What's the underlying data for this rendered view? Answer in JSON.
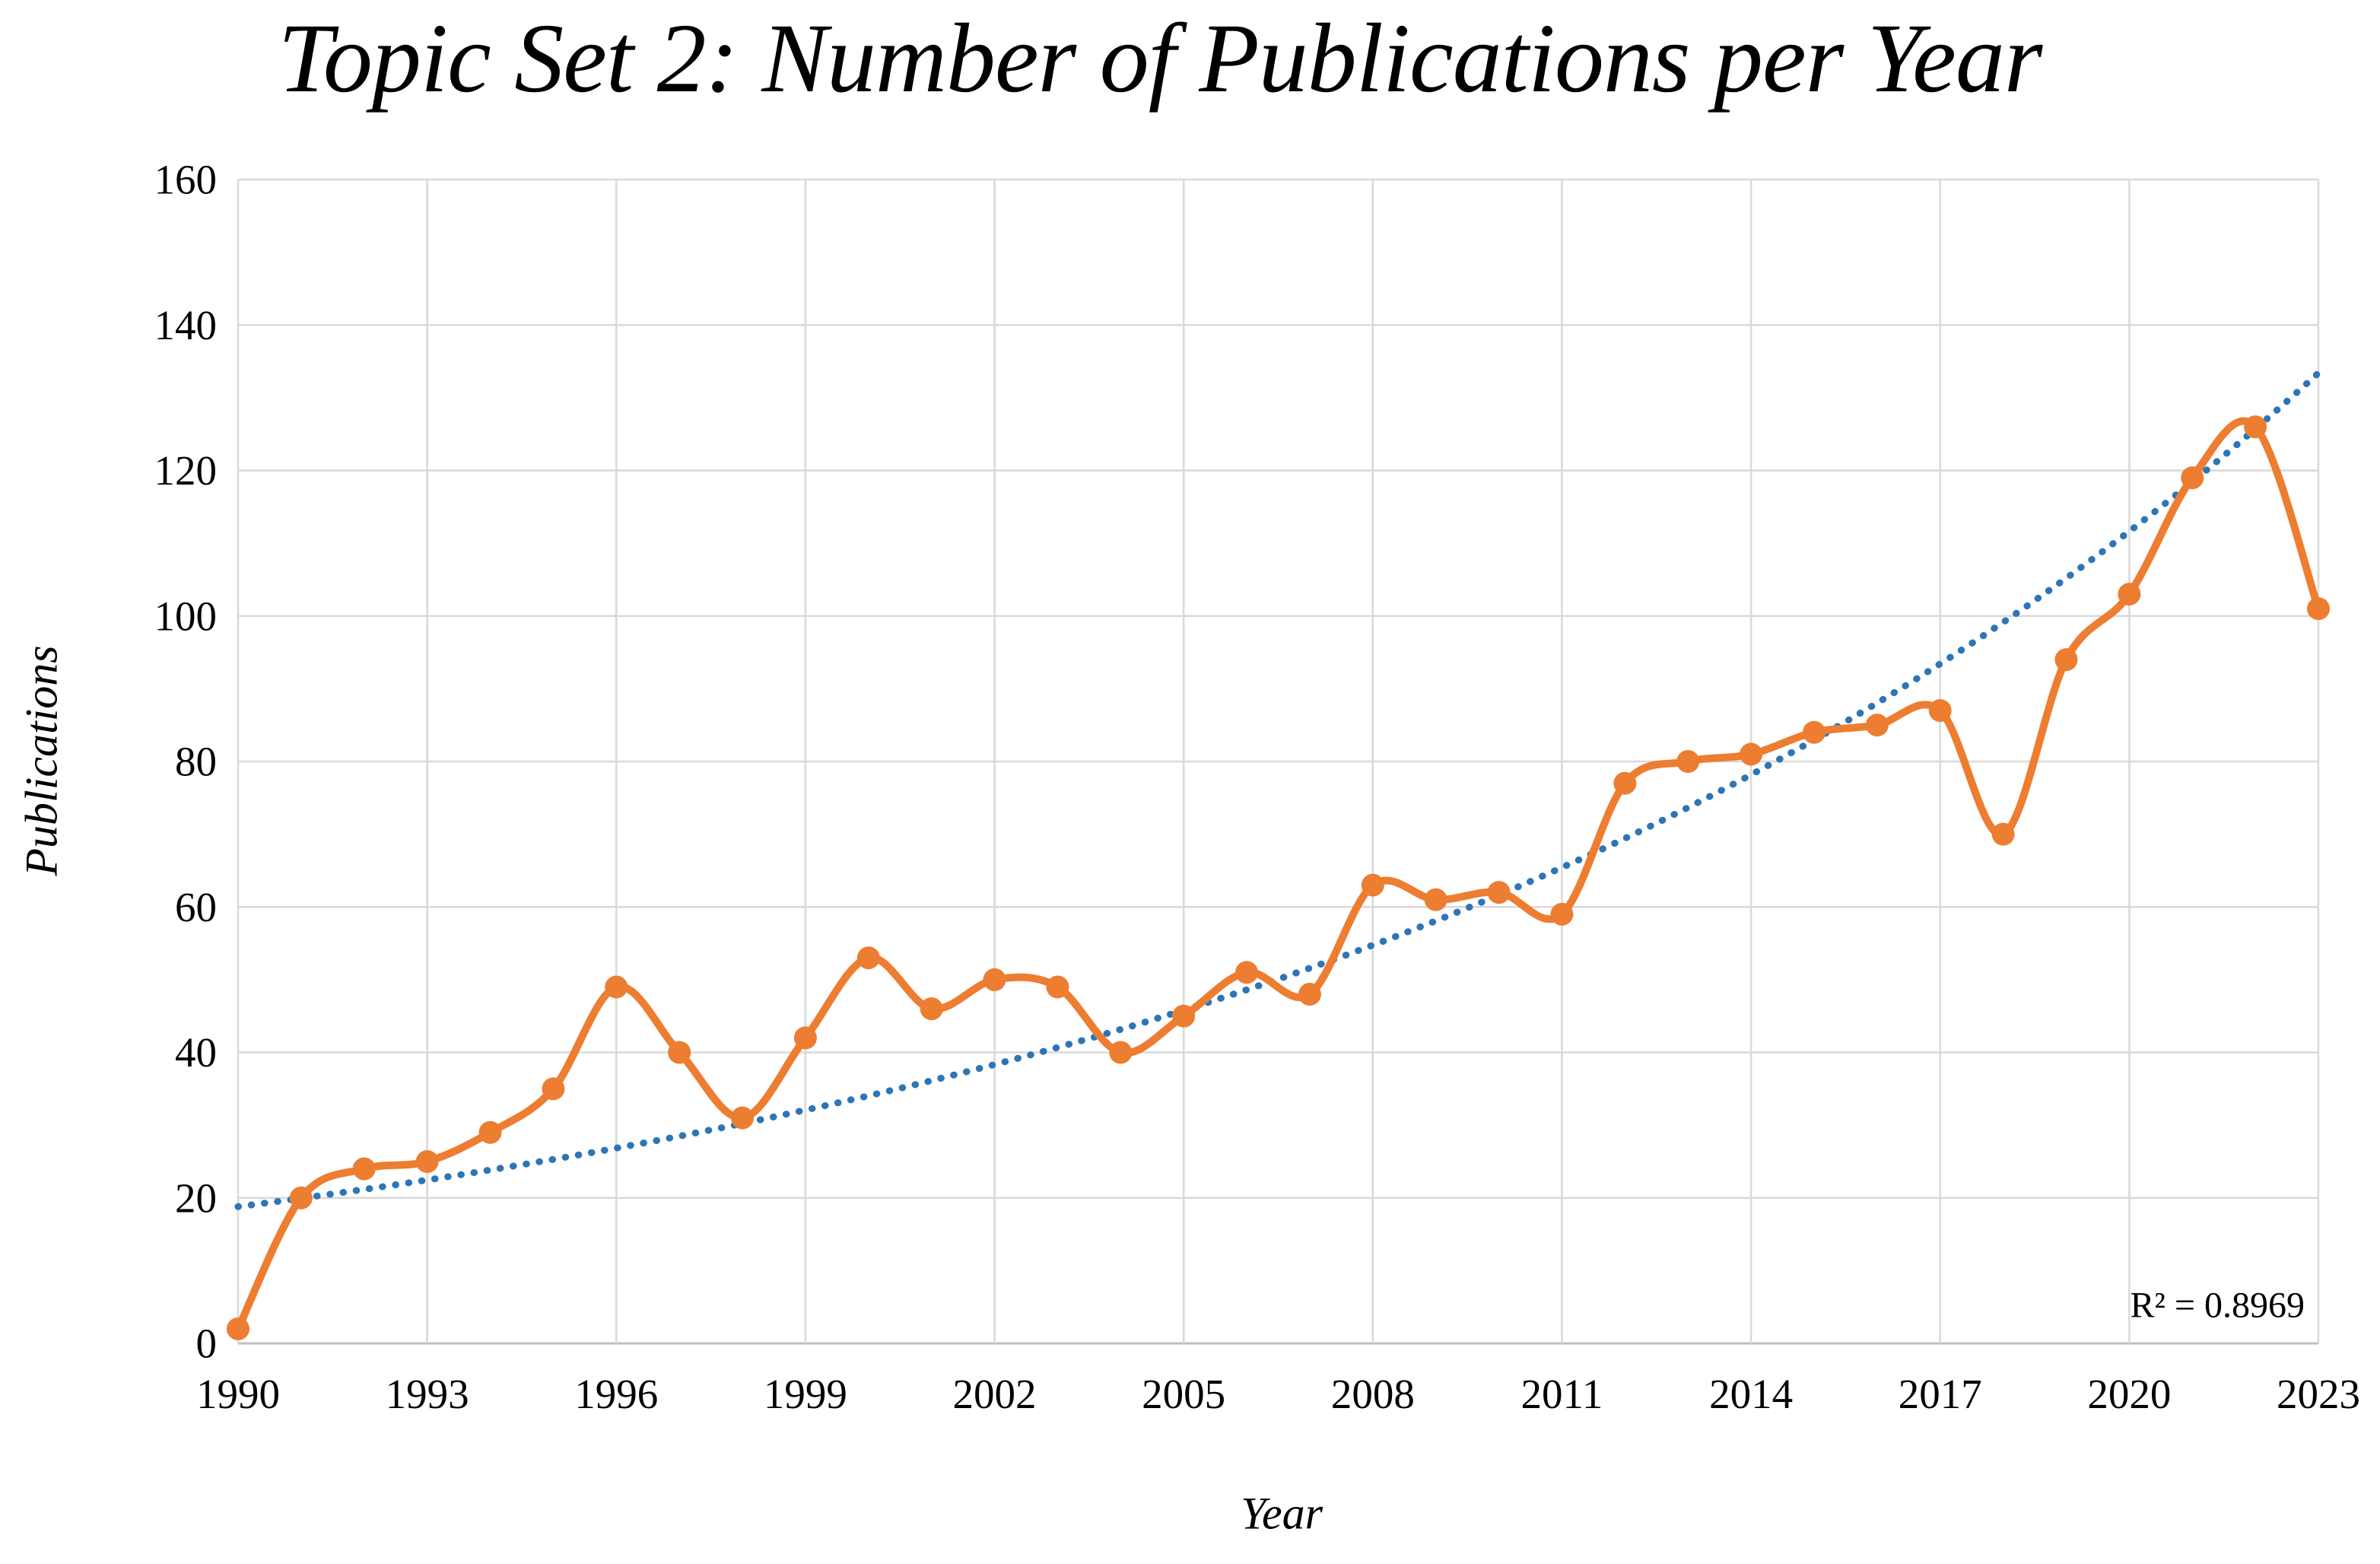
{
  "chart_data": {
    "type": "line",
    "title": "Topic Set 2: Number of Publications per Year",
    "xlabel": "Year",
    "ylabel": "Publications",
    "categories": [
      1990,
      1991,
      1992,
      1993,
      1994,
      1995,
      1996,
      1997,
      1998,
      1999,
      2000,
      2001,
      2002,
      2003,
      2004,
      2005,
      2006,
      2007,
      2008,
      2009,
      2010,
      2011,
      2012,
      2013,
      2014,
      2015,
      2016,
      2017,
      2018,
      2019,
      2020,
      2021,
      2022,
      2023
    ],
    "series": [
      {
        "name": "Publications",
        "color": "#ED7D31",
        "marker": "circle",
        "smooth": true,
        "values": [
          2,
          20,
          24,
          25,
          29,
          35,
          49,
          40,
          31,
          42,
          53,
          46,
          50,
          49,
          40,
          45,
          51,
          48,
          63,
          61,
          62,
          59,
          77,
          80,
          81,
          84,
          85,
          87,
          70,
          94,
          103,
          119,
          126,
          101
        ]
      }
    ],
    "trendline": {
      "type": "exponential",
      "style": "dotted",
      "color": "#2E75B6",
      "start_value": 18.8,
      "end_value": 133.4,
      "label": "R² = 0.8969"
    },
    "xlim": [
      1990,
      2023
    ],
    "ylim": [
      0,
      160
    ],
    "x_ticks": [
      1990,
      1993,
      1996,
      1999,
      2002,
      2005,
      2008,
      2011,
      2014,
      2017,
      2020,
      2023
    ],
    "y_ticks": [
      0,
      20,
      40,
      60,
      80,
      100,
      120,
      140,
      160
    ],
    "grid": true,
    "legend": false
  },
  "colors": {
    "series": "#ED7D31",
    "trendline": "#2E75B6",
    "gridline": "#D9D9D9",
    "axis_line": "#BFBFBF",
    "text": "#000000",
    "background": "#FFFFFF"
  }
}
